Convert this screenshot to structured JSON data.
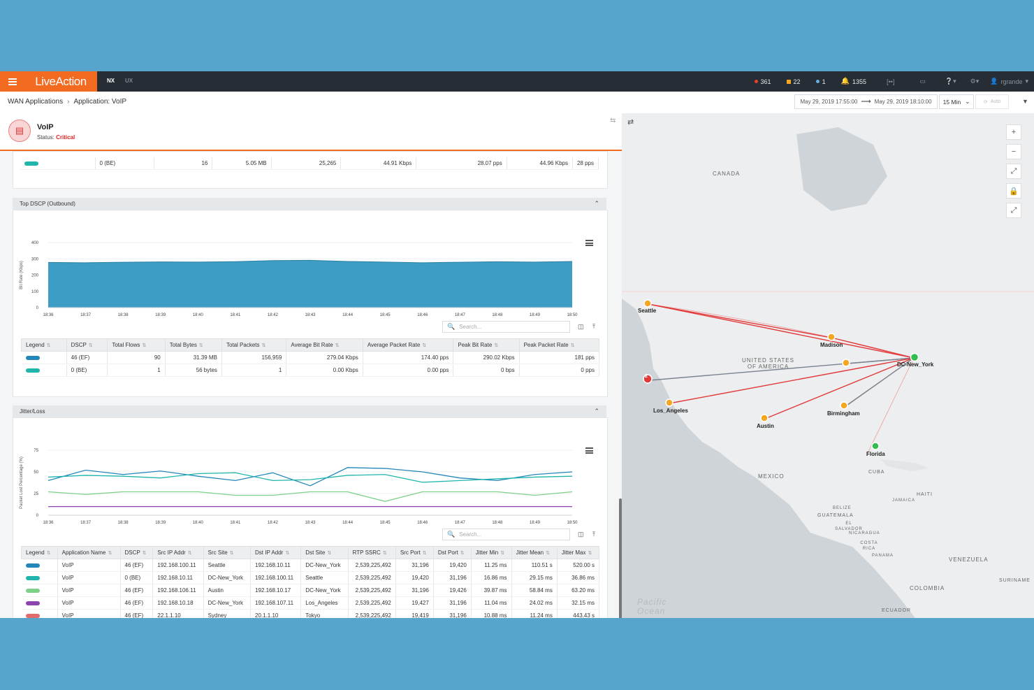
{
  "topbar": {
    "brand": "LiveAction",
    "tabs": [
      "NX",
      "UX"
    ],
    "alerts": [
      {
        "count": "361",
        "color": "#e8412c"
      },
      {
        "count": "22",
        "color": "#f5a623"
      },
      {
        "count": "1",
        "color": "#6aaee0"
      }
    ],
    "notifications": "1355",
    "user": "rgrande"
  },
  "breadcrumb": {
    "root": "WAN Applications",
    "current": "Application: VoIP"
  },
  "timerange": {
    "start": "May 29, 2019 17:55:00",
    "end": "May 29, 2019 18:10:00",
    "interval": "15 Min",
    "auto": "Auto"
  },
  "application": {
    "name": "VoIP",
    "status_label": "Status:",
    "status": "Critical"
  },
  "top_row": {
    "dscp": "0 (BE)",
    "flows": "16",
    "bytes": "5.05 MB",
    "packets": "25,265",
    "avg_bit": "44.91 Kbps",
    "avg_pkt": "28.07 pps",
    "peak_bit": "44.96 Kbps",
    "peak_pkt": "28 pps",
    "color": "#1fb5ad"
  },
  "dscp_panel": {
    "title": "Top DSCP (Outbound)",
    "ylabel": "Bit Rate (Kbps)",
    "search_placeholder": "Search...",
    "columns": [
      "Legend",
      "DSCP",
      "Total Flows",
      "Total Bytes",
      "Total Packets",
      "Average Bit Rate",
      "Average Packet Rate",
      "Peak Bit Rate",
      "Peak Packet Rate"
    ],
    "rows": [
      {
        "color": "#2486b9",
        "dscp": "46 (EF)",
        "flows": "90",
        "bytes": "31.39 MB",
        "packets": "156,959",
        "avg_bit": "279.04 Kbps",
        "avg_pkt": "174.40 pps",
        "peak_bit": "290.02 Kbps",
        "peak_pkt": "181 pps"
      },
      {
        "color": "#1fb5ad",
        "dscp": "0 (BE)",
        "flows": "1",
        "bytes": "56 bytes",
        "packets": "1",
        "avg_bit": "0.00 Kbps",
        "avg_pkt": "0.00 pps",
        "peak_bit": "0 bps",
        "peak_pkt": "0 pps"
      }
    ]
  },
  "jitter_panel": {
    "title": "Jitter/Loss",
    "ylabel": "Packet Lost Percentage (%)",
    "search_placeholder": "Search...",
    "columns": [
      "Legend",
      "Application Name",
      "DSCP",
      "Src IP Addr",
      "Src Site",
      "Dst IP Addr",
      "Dst Site",
      "RTP SSRC",
      "Src Port",
      "Dst Port",
      "Jitter Min",
      "Jitter Mean",
      "Jitter Max"
    ],
    "rows": [
      {
        "color": "#2486b9",
        "app": "VoIP",
        "dscp": "46 (EF)",
        "src_ip": "192.168.100.11",
        "src_site": "Seattle",
        "dst_ip": "192.168.10.11",
        "dst_site": "DC-New_York",
        "ssrc": "2,539,225,492",
        "src_port": "31,196",
        "dst_port": "19,420",
        "jmin": "11.25 ms",
        "jmean": "110.51 s",
        "jmax": "520.00 s"
      },
      {
        "color": "#1fb5ad",
        "app": "VoIP",
        "dscp": "0 (BE)",
        "src_ip": "192.168.10.11",
        "src_site": "DC-New_York",
        "dst_ip": "192.168.100.11",
        "dst_site": "Seattle",
        "ssrc": "2,539,225,492",
        "src_port": "19,420",
        "dst_port": "31,196",
        "jmin": "16.86 ms",
        "jmean": "29.15 ms",
        "jmax": "36.86 ms"
      },
      {
        "color": "#7fd08a",
        "app": "VoIP",
        "dscp": "46 (EF)",
        "src_ip": "192.168.106.11",
        "src_site": "Austin",
        "dst_ip": "192.168.10.17",
        "dst_site": "DC-New_York",
        "ssrc": "2,539,225,492",
        "src_port": "31,196",
        "dst_port": "19,426",
        "jmin": "39.87 ms",
        "jmean": "58.84 ms",
        "jmax": "63.20 ms"
      },
      {
        "color": "#8e44ad",
        "app": "VoIP",
        "dscp": "46 (EF)",
        "src_ip": "192.168.10.18",
        "src_site": "DC-New_York",
        "dst_ip": "192.168.107.11",
        "dst_site": "Los_Angeles",
        "ssrc": "2,539,225,492",
        "src_port": "19,427",
        "dst_port": "31,196",
        "jmin": "11.04 ms",
        "jmean": "24.02 ms",
        "jmax": "32.15 ms"
      },
      {
        "color": "#e26b6b",
        "app": "VoIP",
        "dscp": "46 (EF)",
        "src_ip": "22.1.1.10",
        "src_site": "Sydney",
        "dst_ip": "20.1.1.10",
        "dst_site": "Tokyo",
        "ssrc": "2,539,225,492",
        "src_port": "19,419",
        "dst_port": "31,196",
        "jmin": "10.88 ms",
        "jmean": "11.24 ms",
        "jmax": "443.43 s"
      }
    ]
  },
  "chart_data": [
    {
      "type": "area",
      "ylabel": "Bit Rate (Kbps)",
      "ylim": [
        0,
        400
      ],
      "yticks": [
        0,
        100,
        200,
        300,
        400
      ],
      "x": [
        "18:36",
        "18:37",
        "18:38",
        "18:39",
        "18:40",
        "18:41",
        "18:42",
        "18:43",
        "18:44",
        "18:45",
        "18:46",
        "18:47",
        "18:48",
        "18:49",
        "18:50"
      ],
      "series": [
        {
          "values": [
            278,
            276,
            279,
            281,
            280,
            283,
            289,
            291,
            284,
            280,
            276,
            279,
            282,
            280,
            284
          ],
          "color": "#3d9dc4"
        }
      ]
    },
    {
      "type": "line",
      "ylabel": "Packet Lost Percentage (%)",
      "ylim": [
        0,
        75
      ],
      "yticks": [
        0,
        25,
        50,
        75
      ],
      "x": [
        "18:36",
        "18:37",
        "18:38",
        "18:39",
        "18:40",
        "18:41",
        "18:42",
        "18:43",
        "18:44",
        "18:45",
        "18:46",
        "18:47",
        "18:48",
        "18:49",
        "18:50"
      ],
      "series": [
        {
          "values": [
            40,
            52,
            47,
            51,
            45,
            40,
            49,
            34,
            55,
            54,
            50,
            43,
            40,
            47,
            50
          ],
          "color": "#2486b9"
        },
        {
          "values": [
            44,
            46,
            45,
            43,
            48,
            49,
            40,
            41,
            46,
            47,
            38,
            40,
            42,
            44,
            45
          ],
          "color": "#1fb5ad"
        },
        {
          "values": [
            27,
            24,
            27,
            27,
            27,
            23,
            23,
            27,
            27,
            16,
            27,
            27,
            27,
            23,
            27
          ],
          "color": "#7fd08a"
        },
        {
          "values": [
            10,
            10,
            10,
            10,
            10,
            10,
            10,
            10,
            10,
            10,
            10,
            10,
            10,
            10,
            10
          ],
          "color": "#8e44ad"
        }
      ]
    }
  ],
  "map": {
    "labels": {
      "canada": "CANADA",
      "usa": "UNITED STATES OF AMERICA",
      "mexico": "MEXICO",
      "cuba": "CUBA",
      "haiti": "HAITI",
      "jamaica": "JAMAICA",
      "belize": "BELIZE",
      "guatemala": "GUATEMALA",
      "el_salvador": "EL SALVADOR",
      "nicaragua": "NICARAGUA",
      "costa_rica": "COSTA RICA",
      "panama": "PANAMA",
      "venezuela": "VENEZUELA",
      "colombia": "COLOMBIA",
      "ecuador": "ECUADOR",
      "suriname": "SURINAME",
      "ocean": "Pacific Ocean"
    },
    "sites": [
      {
        "name": "Seattle",
        "color": "#f5a623"
      },
      {
        "name": "Madison",
        "color": "#f5a623"
      },
      {
        "name": "DC-New_York",
        "color": "#2ebd4e"
      },
      {
        "name": "Los_Angeles",
        "color": "#f5a623"
      },
      {
        "name": "Austin",
        "color": "#f5a623"
      },
      {
        "name": "Birmingham",
        "color": "#f5a623"
      },
      {
        "name": "Florida",
        "color": "#2ebd4e"
      }
    ],
    "cluster_badge": "2"
  }
}
